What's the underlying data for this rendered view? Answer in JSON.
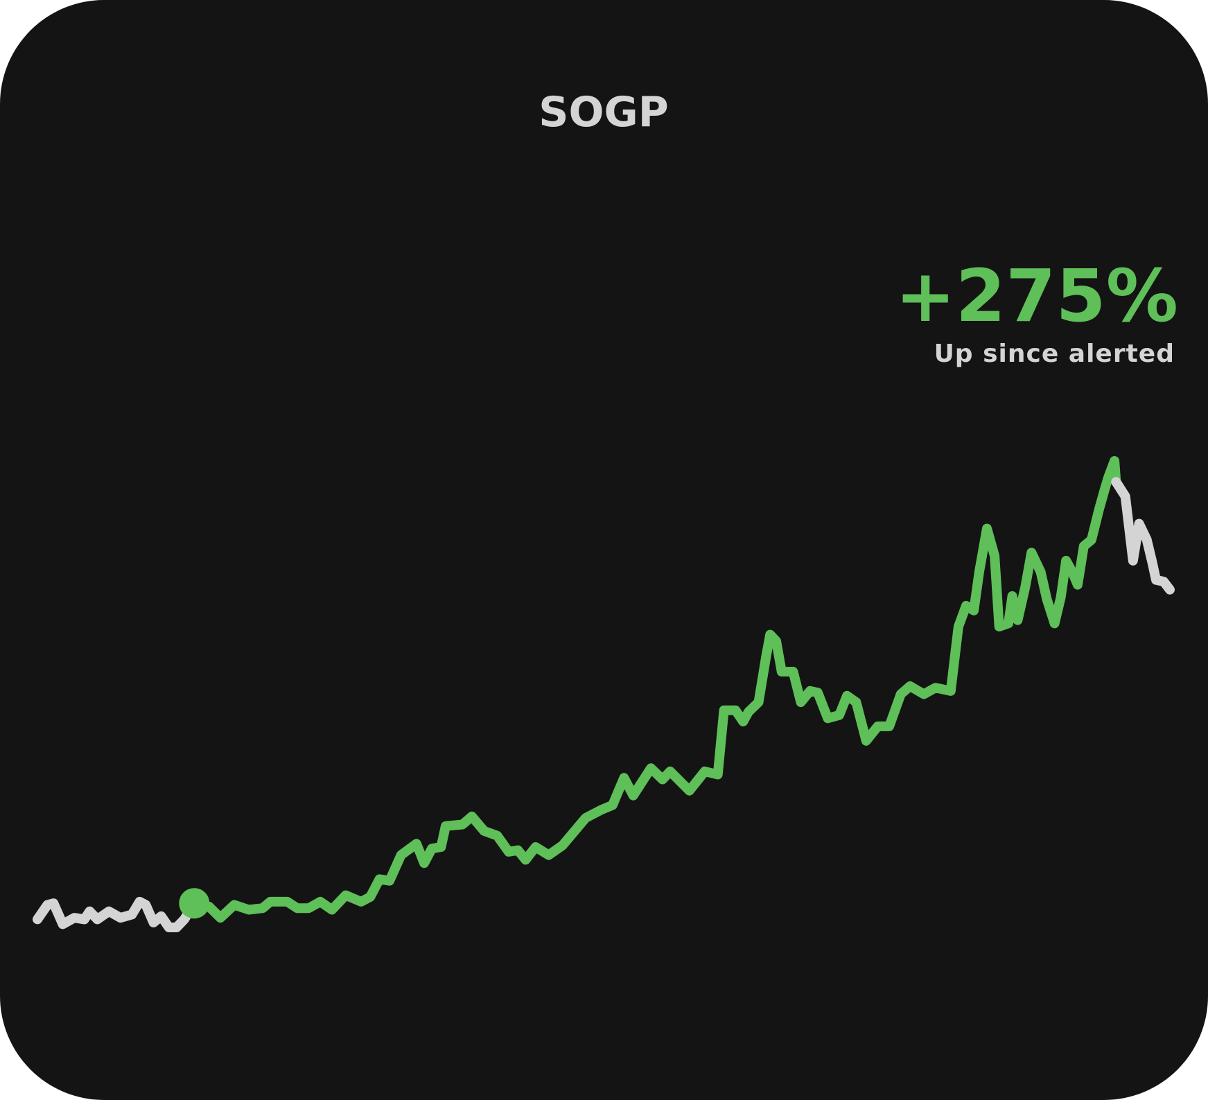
{
  "chart_data": {
    "type": "line",
    "title": "SOGP",
    "change": {
      "value": 275,
      "label": "+275%"
    },
    "caption": "Up since alerted",
    "series": [
      {
        "color": "#d4d4d4",
        "x": [
          0,
          13,
          21,
          33,
          48,
          61,
          68,
          78,
          93,
          108,
          123,
          133,
          141,
          151,
          161,
          171,
          181,
          191,
          204
        ],
        "values": [
          -9,
          0,
          1,
          -12,
          -8,
          -9,
          -4,
          -9,
          -4,
          -8,
          -6,
          2,
          0,
          -11,
          -7,
          -14,
          -14,
          -9,
          1
        ]
      },
      {
        "color": "#5fbf58",
        "x": [
          204,
          223,
          238,
          256,
          275,
          293,
          303,
          325,
          338,
          353,
          368,
          383,
          401,
          421,
          433,
          445,
          458,
          473,
          493,
          503,
          513,
          525,
          531,
          553,
          565,
          581,
          598,
          613,
          625,
          635,
          648,
          665,
          683,
          713,
          733,
          748,
          763,
          775,
          798,
          813,
          823,
          848,
          868,
          885,
          893,
          908,
          918,
          925,
          938,
          948,
          953,
          961,
          968,
          983,
          993,
          1005,
          1015,
          1028,
          1043,
          1053,
          1065,
          1078,
          1093,
          1108,
          1123,
          1135,
          1153,
          1168,
          1188,
          1198,
          1208,
          1218,
          1225,
          1235,
          1245,
          1251,
          1263,
          1268,
          1275,
          1285,
          1293,
          1305,
          1313,
          1323,
          1331,
          1338,
          1346,
          1353,
          1361,
          1371,
          1381,
          1388,
          1393,
          1401,
          1403
        ],
        "values": [
          1,
          -1,
          -8,
          0,
          -3,
          -2,
          2,
          2,
          -2,
          -2,
          2,
          -3,
          6,
          2,
          5,
          16,
          15,
          31,
          38,
          26,
          35,
          36,
          49,
          50,
          55,
          46,
          43,
          33,
          34,
          28,
          36,
          31,
          37,
          54,
          59,
          62,
          79,
          68,
          85,
          78,
          83,
          71,
          83,
          81,
          121,
          121,
          114,
          120,
          126,
          155,
          168,
          164,
          145,
          145,
          126,
          133,
          132,
          116,
          118,
          130,
          126,
          102,
          111,
          111,
          131,
          136,
          131,
          135,
          133,
          173,
          186,
          183,
          207,
          234,
          217,
          173,
          175,
          192,
          177,
          198,
          219,
          207,
          190,
          175,
          191,
          214,
          207,
          199,
          223,
          227,
          246,
          258,
          266,
          276,
          263
        ]
      },
      {
        "color": "#d4d4d4",
        "x": [
          1403,
          1415,
          1425,
          1433,
          1443,
          1450,
          1455,
          1465,
          1473
        ],
        "values": [
          263,
          254,
          214,
          237,
          227,
          213,
          202,
          201,
          196
        ]
      }
    ]
  }
}
